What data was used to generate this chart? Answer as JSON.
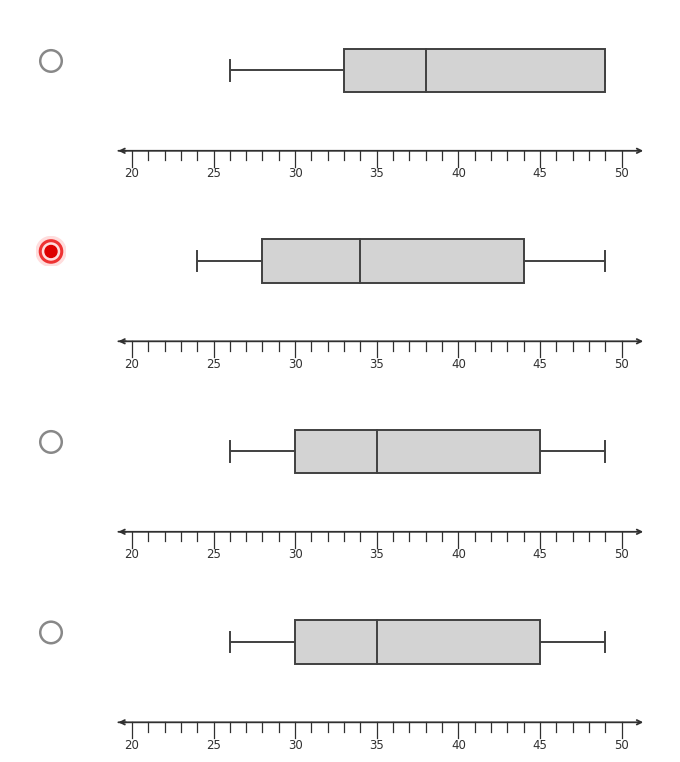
{
  "boxplots": [
    {
      "min": 26,
      "q1": 33,
      "median": 38,
      "q3": 49,
      "max": 49
    },
    {
      "min": 24,
      "q1": 28,
      "median": 34,
      "q3": 44,
      "max": 49
    },
    {
      "min": 26,
      "q1": 30,
      "median": 35,
      "q3": 45,
      "max": 49
    },
    {
      "min": 26,
      "q1": 30,
      "median": 35,
      "q3": 45,
      "max": 49
    }
  ],
  "radio_selected": 1,
  "xlim": [
    19,
    51.5
  ],
  "xticks": [
    20,
    25,
    30,
    35,
    40,
    45,
    50
  ],
  "box_facecolor": "#d3d3d3",
  "box_edgecolor": "#404040",
  "axis_color": "#303030",
  "radio_unselected_color": "#888888",
  "radio_selected_outer": "#ee3333",
  "radio_selected_inner": "#dd0000",
  "radio_selected_bg": "#ffdddd"
}
